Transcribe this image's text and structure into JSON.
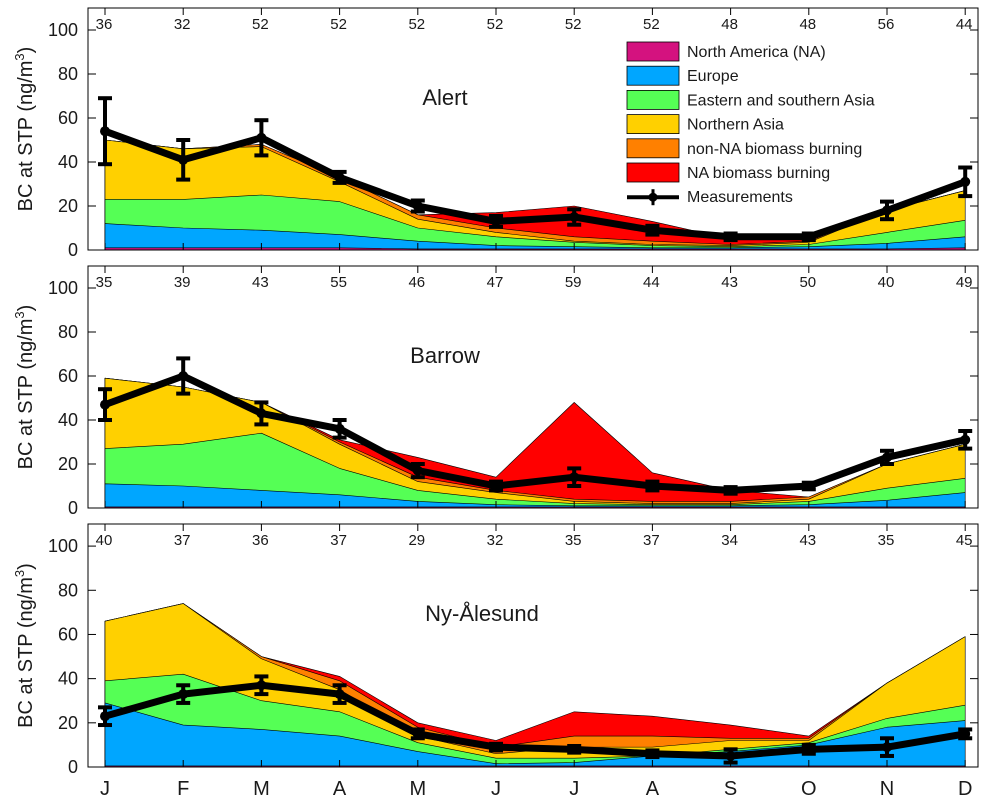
{
  "chart_data": {
    "type": "area",
    "months": [
      "J",
      "F",
      "M",
      "A",
      "M",
      "J",
      "J",
      "A",
      "S",
      "O",
      "N",
      "D"
    ],
    "ylabel_prefix": "BC at STP (ng/m",
    "ylabel_sup": "3",
    "ylabel_suffix": ")",
    "ylim": [
      0,
      110
    ],
    "yticks": [
      0,
      20,
      40,
      60,
      80,
      100
    ],
    "legend": {
      "placement": "top-right of first panel",
      "entries": [
        {
          "key": "NA",
          "label": "North America (NA)",
          "color": "#d4127f"
        },
        {
          "key": "EU",
          "label": "Europe",
          "color": "#00a6ff"
        },
        {
          "key": "ESA",
          "label": "Eastern and southern Asia",
          "color": "#55ff55"
        },
        {
          "key": "NAs",
          "label": "Northern Asia",
          "color": "#ffd000"
        },
        {
          "key": "nonNABB",
          "label": "non-NA biomass burning",
          "color": "#ff8000"
        },
        {
          "key": "NABB",
          "label": "NA biomass burning",
          "color": "#ff0000"
        },
        {
          "key": "meas",
          "label": "Measurements",
          "color": "#000000"
        }
      ]
    },
    "panels": [
      {
        "station": "Alert",
        "counts": [
          "36",
          "32",
          "52",
          "52",
          "52",
          "52",
          "52",
          "52",
          "48",
          "48",
          "56",
          "44"
        ],
        "cumulative": {
          "NA": [
            1,
            1,
            1,
            1,
            0.5,
            0.5,
            0.5,
            0.5,
            0.5,
            0.5,
            0.5,
            1
          ],
          "EU": [
            12,
            10,
            9,
            7,
            4,
            2,
            1.5,
            1,
            1,
            1.5,
            3,
            6
          ],
          "ESA": [
            23,
            23,
            25,
            22,
            10,
            6,
            3.5,
            2,
            1.5,
            2.5,
            8,
            13.5
          ],
          "NAs": [
            50,
            46,
            47,
            31,
            14,
            8,
            4,
            2.5,
            2,
            3.5,
            18,
            27
          ],
          "nonNABB": [
            50,
            46,
            48,
            33,
            16,
            10,
            6,
            4,
            2.5,
            4,
            18,
            27
          ],
          "NABB": [
            50,
            46,
            48,
            33,
            16,
            17,
            20,
            13,
            5,
            5,
            18,
            27
          ]
        },
        "measurements": [
          54,
          41,
          51,
          33,
          20,
          13,
          15,
          9,
          6,
          6,
          18,
          31
        ],
        "errors": [
          15,
          9,
          8,
          2.5,
          2.5,
          2.5,
          3.5,
          2,
          1.5,
          1.5,
          4,
          6.5
        ]
      },
      {
        "station": "Barrow",
        "counts": [
          "35",
          "39",
          "43",
          "55",
          "46",
          "47",
          "59",
          "44",
          "43",
          "50",
          "40",
          "49"
        ],
        "cumulative": {
          "NA": [
            0.5,
            0.5,
            0.5,
            0.5,
            0.5,
            0.5,
            0.5,
            0.5,
            0.5,
            0.5,
            0.5,
            0.5
          ],
          "EU": [
            11,
            10,
            8,
            6,
            3,
            1.5,
            1,
            1,
            1,
            1.5,
            3.5,
            7
          ],
          "ESA": [
            27,
            29,
            34,
            18,
            8,
            4,
            2,
            1.5,
            1.5,
            3,
            9,
            13.5
          ],
          "NAs": [
            59,
            55,
            48,
            29,
            12,
            7,
            3,
            2,
            2,
            4,
            20,
            29
          ],
          "nonNABB": [
            59,
            55,
            48,
            30,
            14,
            8,
            4,
            3,
            3,
            5,
            20,
            29
          ],
          "NABB": [
            59,
            55,
            48,
            31,
            23,
            14,
            48,
            16,
            8,
            5,
            20,
            29
          ]
        },
        "measurements": [
          47,
          60,
          43,
          36,
          17,
          10,
          14,
          10,
          8,
          10,
          23,
          31
        ],
        "errors": [
          7,
          8,
          5,
          4,
          3,
          2,
          4,
          2,
          1.5,
          1.5,
          3,
          4
        ]
      },
      {
        "station": "Ny-Ålesund",
        "counts": [
          "40",
          "37",
          "36",
          "37",
          "29",
          "32",
          "35",
          "37",
          "34",
          "43",
          "35",
          "45"
        ],
        "cumulative": {
          "NA": [
            0.5,
            0.5,
            0.5,
            0.5,
            0.5,
            0.5,
            0.5,
            0.5,
            0.5,
            0.5,
            0.5,
            0.5
          ],
          "EU": [
            29,
            19,
            17,
            14,
            7,
            1.5,
            2,
            5,
            7,
            10,
            18,
            21
          ],
          "ESA": [
            39,
            42,
            30,
            25,
            11,
            4,
            4,
            5,
            8,
            11,
            22,
            28
          ],
          "NAs": [
            66,
            74,
            49,
            35,
            14,
            6,
            9,
            9,
            12,
            12,
            38,
            59
          ],
          "nonNABB": [
            66,
            74,
            50,
            39,
            18,
            9,
            14,
            14,
            13,
            13,
            38,
            59
          ],
          "NABB": [
            66,
            74,
            50,
            41,
            20,
            12,
            25,
            23,
            19,
            14,
            38,
            59
          ]
        },
        "measurements": [
          23,
          33,
          37,
          33,
          15,
          9,
          8,
          6,
          5,
          8,
          9,
          15
        ],
        "errors": [
          4,
          4,
          4,
          4,
          2,
          1.5,
          1.5,
          1.5,
          3,
          2,
          4,
          2
        ]
      }
    ]
  }
}
